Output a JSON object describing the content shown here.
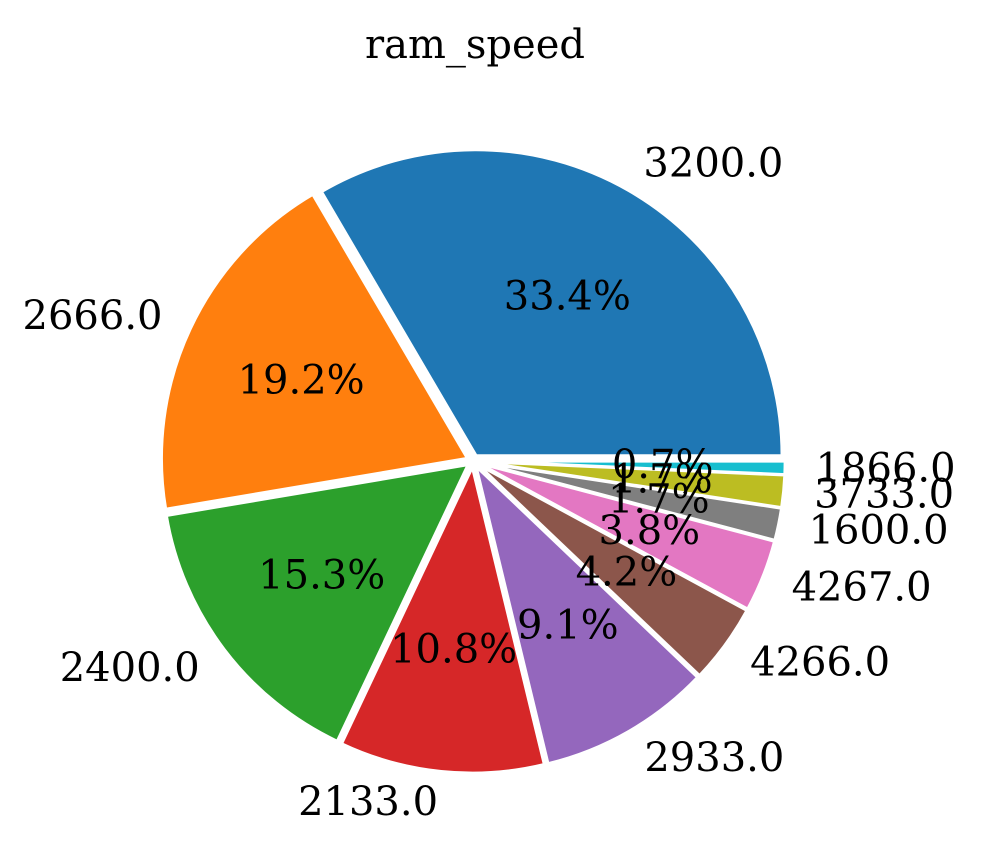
{
  "chart_data": {
    "type": "pie",
    "title": "ram_speed",
    "categories": [
      "3200.0",
      "2666.0",
      "2400.0",
      "2133.0",
      "2933.0",
      "4266.0",
      "4267.0",
      "1600.0",
      "3733.0",
      "1866.0"
    ],
    "values": [
      33.4,
      19.2,
      15.3,
      10.8,
      9.1,
      4.2,
      3.8,
      1.7,
      1.7,
      0.7
    ],
    "percent_labels": [
      "33.4%",
      "19.2%",
      "15.3%",
      "10.8%",
      "9.1%",
      "4.2%",
      "3.8%",
      "1.7%",
      "1.7%",
      "0.7%"
    ],
    "colors": [
      "#1f77b4",
      "#ff7f0e",
      "#2ca02c",
      "#d62728",
      "#9467bd",
      "#8c564b",
      "#e377c2",
      "#7f7f7f",
      "#bcbd22",
      "#17becf"
    ],
    "start_angle_deg": 0,
    "direction": "counterclockwise",
    "explode": [
      0.02,
      0.02,
      0.02,
      0.02,
      0.02,
      0.02,
      0.02,
      0.02,
      0.02,
      0.02
    ]
  }
}
